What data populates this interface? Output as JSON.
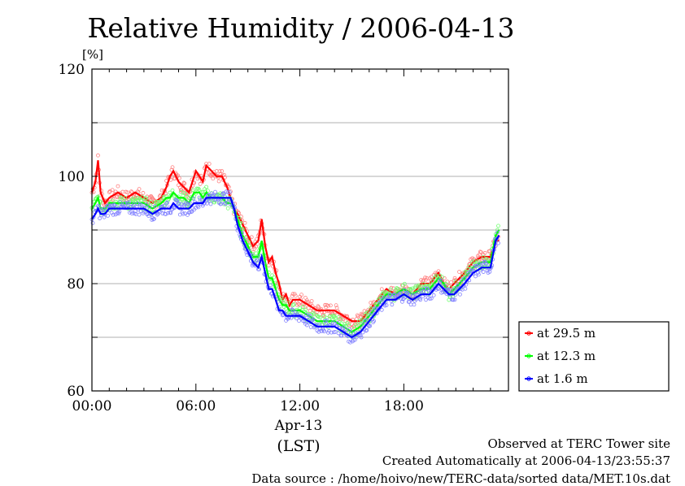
{
  "chart_data": {
    "type": "line",
    "title": "Relative Humidity / 2006-04-13",
    "ylabel": "[%]",
    "ylim": [
      60,
      120
    ],
    "y_ticks": [
      "60",
      "80",
      "100",
      "120"
    ],
    "y_gridlines": [
      70,
      80,
      90,
      100,
      110
    ],
    "x_ticks": [
      "00:00",
      "06:00",
      "12:00",
      "18:00"
    ],
    "x_tick_hours": [
      0,
      6,
      12,
      18
    ],
    "xlim_hours": [
      0,
      24
    ],
    "date_label": "Apr-13",
    "time_zone_label": "(LST)",
    "legend_position": "right, below plot",
    "series": [
      {
        "name": "at 29.5 m",
        "color": "#ff0000",
        "x_hours": [
          0,
          0.2,
          0.35,
          0.5,
          0.75,
          1,
          1.5,
          2,
          2.5,
          3,
          3.5,
          4,
          4.3,
          4.5,
          4.7,
          5,
          5.3,
          5.6,
          5.9,
          6,
          6.2,
          6.4,
          6.6,
          6.9,
          7.2,
          7.5,
          7.8,
          8,
          8.2,
          8.4,
          8.7,
          9,
          9.3,
          9.6,
          9.8,
          10,
          10.2,
          10.4,
          10.6,
          10.8,
          11,
          11.2,
          11.4,
          11.6,
          11.8,
          12,
          12.5,
          13,
          13.5,
          14,
          14.5,
          15,
          15.5,
          16,
          16.5,
          17,
          17.5,
          18,
          18.5,
          19,
          19.5,
          20,
          20.3,
          20.6,
          20.9,
          21.2,
          21.5,
          22,
          22.5,
          23,
          23.3,
          23.5
        ],
        "values": [
          97,
          99,
          103,
          97,
          95,
          96,
          97,
          96,
          97,
          96,
          95,
          96,
          98,
          100,
          101,
          99,
          98,
          97,
          100,
          101,
          100,
          99,
          102,
          101,
          100,
          100,
          98,
          96,
          94,
          93,
          91,
          89,
          87,
          88,
          92,
          87,
          84,
          85,
          82,
          80,
          77,
          78,
          76,
          77,
          77,
          77,
          76,
          75,
          75,
          75,
          74,
          73,
          73,
          75,
          77,
          79,
          78,
          79,
          78,
          80,
          80,
          82,
          80,
          79,
          80,
          81,
          82,
          84,
          85,
          85,
          88,
          88
        ]
      },
      {
        "name": "at 12.3 m",
        "color": "#00ff00",
        "x_hours": [
          0,
          0.2,
          0.35,
          0.5,
          0.75,
          1,
          1.5,
          2,
          2.5,
          3,
          3.5,
          4,
          4.3,
          4.5,
          4.7,
          5,
          5.3,
          5.6,
          5.9,
          6,
          6.2,
          6.4,
          6.6,
          6.9,
          7.2,
          7.5,
          7.8,
          8,
          8.2,
          8.4,
          8.7,
          9,
          9.3,
          9.6,
          9.8,
          10,
          10.2,
          10.4,
          10.6,
          10.8,
          11,
          11.2,
          11.4,
          11.6,
          11.8,
          12,
          12.5,
          13,
          13.5,
          14,
          14.5,
          15,
          15.5,
          16,
          16.5,
          17,
          17.5,
          18,
          18.5,
          19,
          19.5,
          20,
          20.3,
          20.6,
          20.9,
          21.2,
          21.5,
          22,
          22.5,
          23,
          23.3,
          23.5
        ],
        "values": [
          94,
          95,
          96,
          94,
          94,
          95,
          95,
          95,
          95,
          95,
          94,
          95,
          96,
          96,
          97,
          96,
          96,
          95,
          97,
          97,
          97,
          96,
          97,
          96,
          96,
          96,
          95,
          95,
          94,
          92,
          89,
          87,
          85,
          85,
          88,
          84,
          81,
          81,
          79,
          77,
          76,
          76,
          75,
          75,
          75,
          75,
          74,
          73,
          73,
          73,
          72,
          71,
          72,
          74,
          76,
          78,
          78,
          79,
          78,
          79,
          79,
          81,
          80,
          78,
          79,
          80,
          81,
          83,
          84,
          84,
          89,
          90
        ]
      },
      {
        "name": "at 1.6 m",
        "color": "#0000ff",
        "x_hours": [
          0,
          0.2,
          0.35,
          0.5,
          0.75,
          1,
          1.5,
          2,
          2.5,
          3,
          3.5,
          4,
          4.3,
          4.5,
          4.7,
          5,
          5.3,
          5.6,
          5.9,
          6,
          6.2,
          6.4,
          6.6,
          6.9,
          7.2,
          7.5,
          7.8,
          8,
          8.2,
          8.4,
          8.7,
          9,
          9.3,
          9.6,
          9.8,
          10,
          10.2,
          10.4,
          10.6,
          10.8,
          11,
          11.2,
          11.4,
          11.6,
          11.8,
          12,
          12.5,
          13,
          13.5,
          14,
          14.5,
          15,
          15.5,
          16,
          16.5,
          17,
          17.5,
          18,
          18.5,
          19,
          19.5,
          20,
          20.3,
          20.6,
          20.9,
          21.2,
          21.5,
          22,
          22.5,
          23,
          23.3,
          23.5
        ],
        "values": [
          92,
          93,
          94,
          93,
          93,
          94,
          94,
          94,
          94,
          94,
          93,
          94,
          94,
          94,
          95,
          94,
          94,
          94,
          95,
          95,
          95,
          95,
          96,
          96,
          96,
          96,
          96,
          96,
          94,
          91,
          88,
          86,
          84,
          83,
          85,
          82,
          79,
          79,
          77,
          75,
          75,
          74,
          74,
          74,
          74,
          74,
          73,
          72,
          72,
          72,
          71,
          70,
          71,
          73,
          75,
          77,
          77,
          78,
          77,
          78,
          78,
          80,
          79,
          78,
          78,
          79,
          80,
          82,
          83,
          83,
          88,
          89
        ]
      }
    ]
  },
  "footer": {
    "line1": "Observed at TERC Tower site",
    "line2": "Created Automatically at 2006-04-13/23:55:37",
    "line3": "Data source : /home/hoivo/new/TERC-data/sorted  data/MET.10s.dat"
  }
}
